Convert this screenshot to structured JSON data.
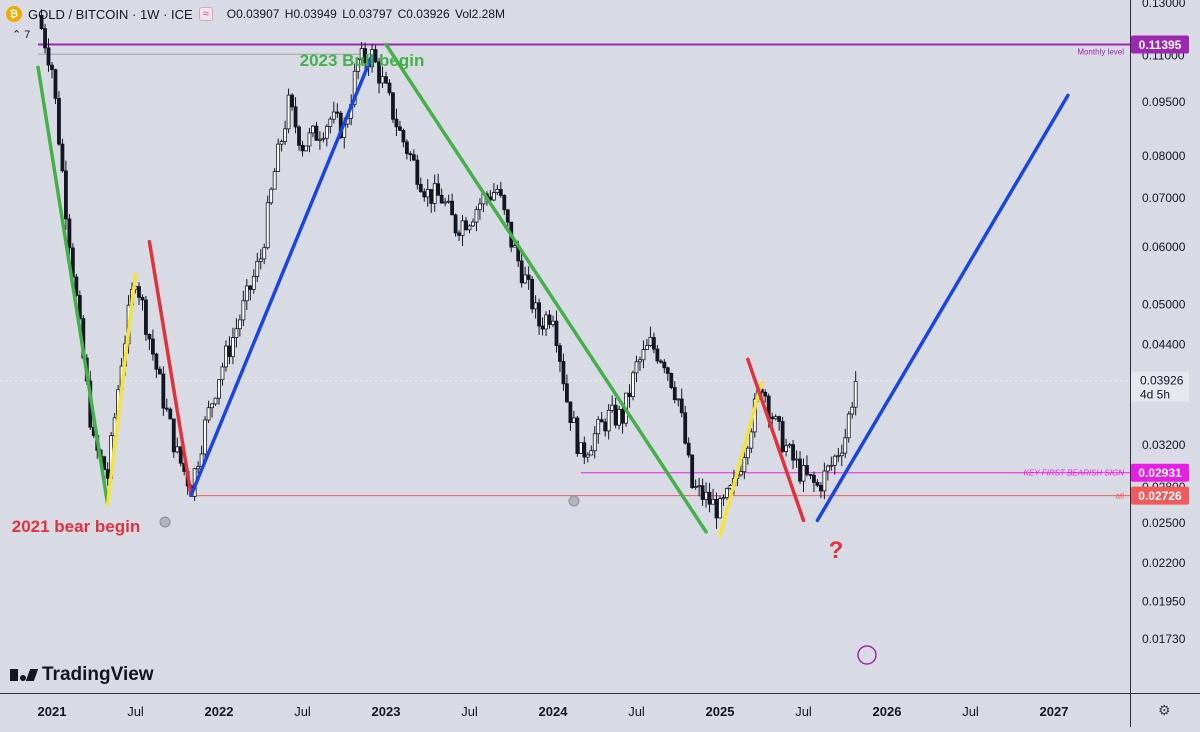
{
  "header": {
    "symbol": "GOLD / BITCOIN · 1W · ICE",
    "badge": "≈",
    "open": "O0.03907",
    "high": "H0.03949",
    "low": "L0.03797",
    "close": "C0.03926",
    "volume": "Vol2.28M",
    "toggle": "7"
  },
  "watermark": "TradingView",
  "chart_data": {
    "type": "candlestick",
    "y_scale": "log",
    "ylim": [
      0.0165,
      0.1365
    ],
    "y_ticks": [
      "0.13000",
      "0.11000",
      "0.09500",
      "0.08000",
      "0.07000",
      "0.06000",
      "0.05000",
      "0.04400",
      "0.03800",
      "0.03200",
      "0.02800",
      "0.02500",
      "0.02200",
      "0.01950",
      "0.01730"
    ],
    "x_ticks": [
      "2021",
      "Jul",
      "2022",
      "Jul",
      "2023",
      "Jul",
      "2024",
      "Jul",
      "2025",
      "Jul",
      "2026",
      "Jul",
      "2027"
    ],
    "xlim": [
      "2020-12",
      "2027-07"
    ],
    "last_price": {
      "value": "0.03926",
      "countdown": "4d 5h",
      "color": "#131722"
    },
    "price_labels": [
      {
        "value": "0.11395",
        "color": "#9c27b0",
        "label": "Monthly level"
      },
      {
        "value": "0.02931",
        "color": "#e91ee4",
        "label": "KEY FIRST BEARISH SIGN"
      },
      {
        "value": "0.02726",
        "color": "#f05a5a",
        "label": "atl"
      }
    ],
    "annotations": [
      {
        "text": "2023 Bull begin",
        "color": "#43b04a"
      },
      {
        "text": "2021 bear begin",
        "color": "#e0313f"
      },
      {
        "text": "?",
        "color": "#e0313f"
      }
    ],
    "price_path_approx": [
      [
        "2020-12",
        0.125
      ],
      [
        "2021-01",
        0.106
      ],
      [
        "2021-02",
        0.068
      ],
      [
        "2021-03",
        0.046
      ],
      [
        "2021-04",
        0.032
      ],
      [
        "2021-05",
        0.029
      ],
      [
        "2021-06",
        0.042
      ],
      [
        "2021-07",
        0.055
      ],
      [
        "2021-08",
        0.045
      ],
      [
        "2021-09",
        0.037
      ],
      [
        "2021-10",
        0.031
      ],
      [
        "2021-11",
        0.028
      ],
      [
        "2021-12",
        0.034
      ],
      [
        "2022-01",
        0.04
      ],
      [
        "2022-02",
        0.045
      ],
      [
        "2022-03",
        0.051
      ],
      [
        "2022-04",
        0.058
      ],
      [
        "2022-05",
        0.076
      ],
      [
        "2022-06",
        0.094
      ],
      [
        "2022-07",
        0.083
      ],
      [
        "2022-08",
        0.086
      ],
      [
        "2022-09",
        0.09
      ],
      [
        "2022-10",
        0.087
      ],
      [
        "2022-11",
        0.108
      ],
      [
        "2022-12",
        0.11
      ],
      [
        "2023-01",
        0.098
      ],
      [
        "2023-02",
        0.086
      ],
      [
        "2023-03",
        0.078
      ],
      [
        "2023-04",
        0.071
      ],
      [
        "2023-05",
        0.07
      ],
      [
        "2023-06",
        0.064
      ],
      [
        "2023-07",
        0.066
      ],
      [
        "2023-08",
        0.07
      ],
      [
        "2023-09",
        0.072
      ],
      [
        "2023-10",
        0.061
      ],
      [
        "2023-11",
        0.054
      ],
      [
        "2023-12",
        0.047
      ],
      [
        "2024-01",
        0.049
      ],
      [
        "2024-02",
        0.037
      ],
      [
        "2024-03",
        0.031
      ],
      [
        "2024-04",
        0.033
      ],
      [
        "2024-05",
        0.035
      ],
      [
        "2024-06",
        0.035
      ],
      [
        "2024-07",
        0.041
      ],
      [
        "2024-08",
        0.044
      ],
      [
        "2024-09",
        0.042
      ],
      [
        "2024-10",
        0.037
      ],
      [
        "2024-11",
        0.028
      ],
      [
        "2024-12",
        0.027
      ],
      [
        "2025-01",
        0.026
      ],
      [
        "2025-02",
        0.028
      ],
      [
        "2025-03",
        0.033
      ],
      [
        "2025-04",
        0.039
      ],
      [
        "2025-05",
        0.034
      ],
      [
        "2025-06",
        0.031
      ],
      [
        "2025-07",
        0.029
      ],
      [
        "2025-08",
        0.028
      ],
      [
        "2025-09",
        0.03
      ],
      [
        "2025-10",
        0.033
      ],
      [
        "2025-10",
        0.03926
      ]
    ],
    "drawn_lines": [
      {
        "color": "#43b04a",
        "from": [
          "2020-12",
          0.106
        ],
        "to": [
          "2021-05",
          0.0265
        ]
      },
      {
        "color": "#f3e33a",
        "from": [
          "2021-05",
          0.0265
        ],
        "to": [
          "2021-07",
          0.055
        ]
      },
      {
        "color": "#e0313f",
        "from": [
          "2021-08",
          0.061
        ],
        "to": [
          "2021-11",
          0.0273
        ]
      },
      {
        "color": "#1b45e0",
        "from": [
          "2021-11",
          0.0273
        ],
        "to": [
          "2022-12",
          0.11
        ]
      },
      {
        "color": "#43b04a",
        "from": [
          "2023-01",
          0.114
        ],
        "to": [
          "2024-12",
          0.0243
        ]
      },
      {
        "color": "#f3e33a",
        "from": [
          "2025-01",
          0.024
        ],
        "to": [
          "2025-04",
          0.039
        ]
      },
      {
        "color": "#e0313f",
        "from": [
          "2025-03",
          0.042
        ],
        "to": [
          "2025-07",
          0.0252
        ]
      },
      {
        "color": "#1b45e0",
        "from": [
          "2025-08",
          0.0252
        ],
        "to": [
          "2027-02",
          0.097
        ]
      }
    ],
    "horizontal_levels": [
      {
        "value": 0.11395,
        "color": "#9c27b0",
        "from": "2020-12"
      },
      {
        "value": 0.02931,
        "color": "#e91ee4",
        "from": "2024-03"
      },
      {
        "value": 0.02726,
        "color": "#f05a5a",
        "from": "2021-11"
      }
    ]
  }
}
